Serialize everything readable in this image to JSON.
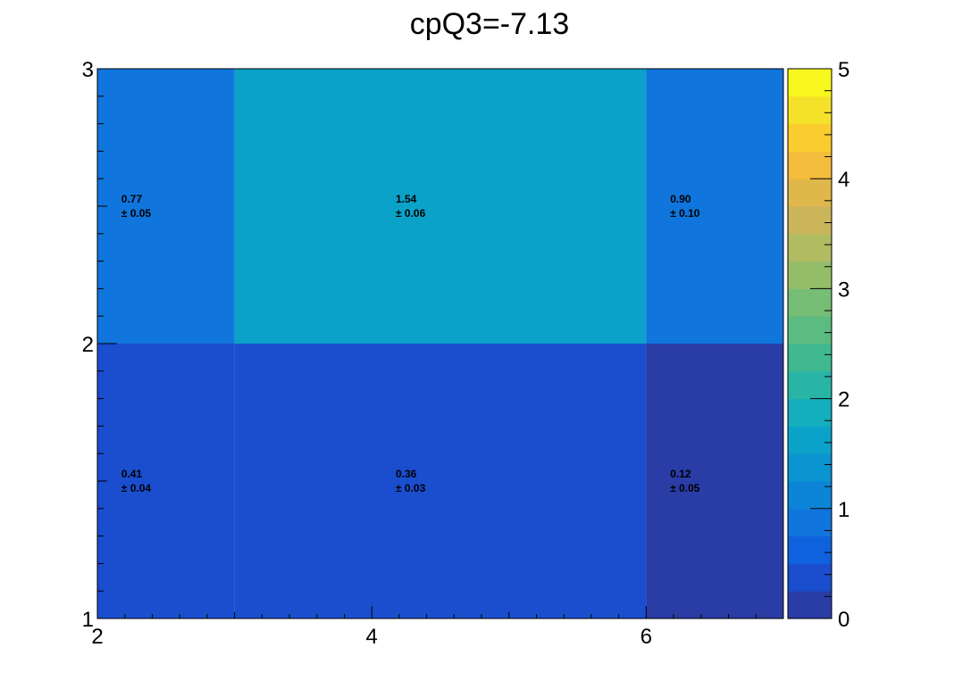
{
  "chart_data": {
    "type": "heatmap",
    "title": "cpQ3=-7.13",
    "xlabel": "",
    "ylabel": "",
    "x_edges": [
      2,
      3,
      6,
      7
    ],
    "y_edges": [
      1,
      2,
      3
    ],
    "xlim": [
      2,
      7
    ],
    "ylim": [
      1,
      3
    ],
    "x_ticks": [
      "2",
      "4",
      "6"
    ],
    "y_ticks": [
      "1",
      "2",
      "3"
    ],
    "cells": [
      {
        "x": [
          2,
          3
        ],
        "y": [
          1,
          2
        ],
        "value": 0.41,
        "error": 0.04,
        "value_label": "0.41",
        "error_label": "± 0.04"
      },
      {
        "x": [
          3,
          6
        ],
        "y": [
          1,
          2
        ],
        "value": 0.36,
        "error": 0.03,
        "value_label": "0.36",
        "error_label": "± 0.03"
      },
      {
        "x": [
          6,
          7
        ],
        "y": [
          1,
          2
        ],
        "value": 0.12,
        "error": 0.05,
        "value_label": "0.12",
        "error_label": "± 0.05"
      },
      {
        "x": [
          2,
          3
        ],
        "y": [
          2,
          3
        ],
        "value": 0.77,
        "error": 0.05,
        "value_label": "0.77",
        "error_label": "± 0.05"
      },
      {
        "x": [
          3,
          6
        ],
        "y": [
          2,
          3
        ],
        "value": 1.54,
        "error": 0.06,
        "value_label": "1.54",
        "error_label": "± 0.06"
      },
      {
        "x": [
          6,
          7
        ],
        "y": [
          2,
          3
        ],
        "value": 0.9,
        "error": 0.1,
        "value_label": "0.90",
        "error_label": "± 0.10"
      }
    ],
    "colorbar": {
      "zlim": [
        0,
        5
      ],
      "ticks": [
        "0",
        "1",
        "2",
        "3",
        "4",
        "5"
      ],
      "palette": [
        "#2a3ca6",
        "#1a4ecf",
        "#0f62dd",
        "#1075dc",
        "#0d85d6",
        "#0a94d0",
        "#0aa2c8",
        "#14aebc",
        "#28b5a6",
        "#40b990",
        "#5cbb80",
        "#76bd75",
        "#94bd6a",
        "#b1bb62",
        "#cab55a",
        "#e0b74a",
        "#f4bd3c",
        "#fbcc2e",
        "#f5e12a",
        "#f7f71d"
      ]
    }
  }
}
